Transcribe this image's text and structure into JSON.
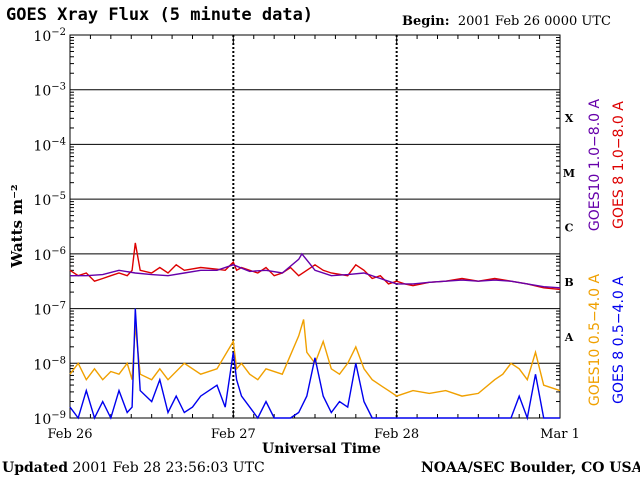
{
  "header": {
    "title": "GOES Xray Flux (5 minute data)",
    "begin_label": "Begin:",
    "begin_value": "2001 Feb 26 0000 UTC"
  },
  "footer": {
    "updated_label": "Updated",
    "updated_value": "2001 Feb 28 23:56:03 UTC",
    "source": "NOAA/SEC Boulder, CO USA"
  },
  "colors": {
    "goes10_long": "#6600aa",
    "goes8_long": "#dd0000",
    "goes10_short": "#f0a000",
    "goes8_short": "#0000ee"
  },
  "chart_data": {
    "type": "line",
    "x_unit": "days since 2001 Feb 26 0000 UTC",
    "xlim": [
      0,
      3
    ],
    "ylim_log10": [
      -9,
      -2
    ],
    "y_scale": "log",
    "xlabel": "Universal Time",
    "ylabel": "Watts m⁻²",
    "x_ticks": [
      {
        "x": 0,
        "label": "Feb 26"
      },
      {
        "x": 1,
        "label": "Feb 27"
      },
      {
        "x": 2,
        "label": "Feb 28"
      },
      {
        "x": 3,
        "label": "Mar 1"
      }
    ],
    "y_ticks": [
      {
        "exp": -2,
        "label": "10",
        "sup": "−2"
      },
      {
        "exp": -3,
        "label": "10",
        "sup": "−3"
      },
      {
        "exp": -4,
        "label": "10",
        "sup": "−4"
      },
      {
        "exp": -5,
        "label": "10",
        "sup": "−5"
      },
      {
        "exp": -6,
        "label": "10",
        "sup": "−6"
      },
      {
        "exp": -7,
        "label": "10",
        "sup": "−7"
      },
      {
        "exp": -8,
        "label": "10",
        "sup": "−8"
      },
      {
        "exp": -9,
        "label": "10",
        "sup": "−9"
      }
    ],
    "flare_classes": [
      {
        "label": "X",
        "log_mid": -3.5
      },
      {
        "label": "M",
        "log_mid": -4.5
      },
      {
        "label": "C",
        "log_mid": -5.5
      },
      {
        "label": "B",
        "log_mid": -6.5
      },
      {
        "label": "A",
        "log_mid": -7.5
      }
    ],
    "legend_right": [
      {
        "name": "GOES 8 1.0−8.0 A",
        "color": "#dd0000"
      },
      {
        "name": "GOES10 1.0−8.0 A",
        "color": "#6600aa"
      }
    ],
    "legend_right_short": [
      {
        "name": "GOES 8 0.5−4.0 A",
        "color": "#0000ee"
      },
      {
        "name": "GOES10 0.5−4.0 A",
        "color": "#f0a000"
      }
    ],
    "series": [
      {
        "name": "GOES10 1.0−8.0 A",
        "color": "#6600aa",
        "x": [
          0.0,
          0.1,
          0.2,
          0.3,
          0.4,
          0.5,
          0.6,
          0.7,
          0.8,
          0.9,
          1.0,
          1.1,
          1.2,
          1.3,
          1.4,
          1.42,
          1.46,
          1.5,
          1.6,
          1.7,
          1.8,
          1.9,
          2.0,
          2.1,
          2.2,
          2.3,
          2.4,
          2.5,
          2.6,
          2.7,
          2.8,
          2.9,
          3.0
        ],
        "log_y": [
          -6.4,
          -6.4,
          -6.38,
          -6.3,
          -6.35,
          -6.38,
          -6.4,
          -6.35,
          -6.3,
          -6.3,
          -6.2,
          -6.32,
          -6.3,
          -6.35,
          -6.1,
          -6.0,
          -6.15,
          -6.3,
          -6.4,
          -6.38,
          -6.35,
          -6.45,
          -6.55,
          -6.55,
          -6.52,
          -6.5,
          -6.48,
          -6.5,
          -6.48,
          -6.5,
          -6.55,
          -6.6,
          -6.62
        ]
      },
      {
        "name": "GOES 8 1.0−8.0 A",
        "color": "#dd0000",
        "x": [
          0.0,
          0.05,
          0.1,
          0.15,
          0.2,
          0.25,
          0.3,
          0.35,
          0.38,
          0.4,
          0.43,
          0.5,
          0.55,
          0.6,
          0.65,
          0.7,
          0.8,
          0.9,
          0.95,
          1.0,
          1.02,
          1.05,
          1.1,
          1.15,
          1.2,
          1.25,
          1.3,
          1.35,
          1.4,
          1.45,
          1.5,
          1.55,
          1.6,
          1.7,
          1.75,
          1.8,
          1.85,
          1.9,
          1.95,
          2.0,
          2.05,
          2.1,
          2.2,
          2.3,
          2.4,
          2.5,
          2.6,
          2.7,
          2.8,
          2.9,
          3.0
        ],
        "log_y": [
          -6.3,
          -6.4,
          -6.35,
          -6.5,
          -6.45,
          -6.4,
          -6.35,
          -6.4,
          -6.3,
          -5.8,
          -6.3,
          -6.35,
          -6.25,
          -6.35,
          -6.2,
          -6.3,
          -6.25,
          -6.28,
          -6.3,
          -6.15,
          -6.3,
          -6.25,
          -6.3,
          -6.35,
          -6.25,
          -6.4,
          -6.35,
          -6.25,
          -6.4,
          -6.3,
          -6.2,
          -6.3,
          -6.35,
          -6.4,
          -6.2,
          -6.3,
          -6.45,
          -6.4,
          -6.55,
          -6.5,
          -6.55,
          -6.58,
          -6.52,
          -6.5,
          -6.45,
          -6.5,
          -6.45,
          -6.5,
          -6.55,
          -6.62,
          -6.65
        ]
      },
      {
        "name": "GOES10 0.5−4.0 A",
        "color": "#f0a000",
        "x": [
          0.0,
          0.05,
          0.1,
          0.15,
          0.2,
          0.25,
          0.3,
          0.35,
          0.38,
          0.4,
          0.43,
          0.5,
          0.55,
          0.6,
          0.7,
          0.8,
          0.9,
          1.0,
          1.02,
          1.05,
          1.1,
          1.15,
          1.2,
          1.3,
          1.4,
          1.43,
          1.45,
          1.5,
          1.55,
          1.6,
          1.65,
          1.7,
          1.75,
          1.8,
          1.85,
          1.9,
          1.95,
          2.0,
          2.1,
          2.2,
          2.3,
          2.4,
          2.5,
          2.6,
          2.65,
          2.7,
          2.75,
          2.8,
          2.85,
          2.9,
          3.0
        ],
        "log_y": [
          -8.2,
          -8.0,
          -8.3,
          -8.1,
          -8.3,
          -8.15,
          -8.2,
          -8.0,
          -8.3,
          -7.3,
          -8.2,
          -8.3,
          -8.1,
          -8.3,
          -8.0,
          -8.2,
          -8.1,
          -7.6,
          -8.1,
          -8.0,
          -8.2,
          -8.3,
          -8.1,
          -8.2,
          -7.5,
          -7.2,
          -7.8,
          -8.0,
          -7.6,
          -8.1,
          -8.2,
          -8.0,
          -7.7,
          -8.1,
          -8.3,
          -8.4,
          -8.5,
          -8.6,
          -8.5,
          -8.55,
          -8.5,
          -8.6,
          -8.55,
          -8.3,
          -8.2,
          -8.0,
          -8.1,
          -8.3,
          -7.8,
          -8.4,
          -8.5
        ]
      },
      {
        "name": "GOES 8 0.5−4.0 A",
        "color": "#0000ee",
        "x": [
          0.0,
          0.05,
          0.1,
          0.15,
          0.2,
          0.25,
          0.3,
          0.35,
          0.38,
          0.4,
          0.43,
          0.5,
          0.55,
          0.6,
          0.65,
          0.7,
          0.75,
          0.8,
          0.9,
          0.95,
          1.0,
          1.02,
          1.05,
          1.1,
          1.15,
          1.2,
          1.25,
          1.3,
          1.35,
          1.4,
          1.45,
          1.5,
          1.55,
          1.6,
          1.65,
          1.7,
          1.75,
          1.8,
          1.85,
          1.9,
          1.95,
          2.0,
          2.1,
          2.2,
          2.3,
          2.4,
          2.5,
          2.6,
          2.7,
          2.75,
          2.8,
          2.85,
          2.9,
          3.0
        ],
        "log_y": [
          -8.8,
          -9.0,
          -8.5,
          -9.0,
          -8.7,
          -9.0,
          -8.5,
          -8.9,
          -8.8,
          -7.0,
          -8.5,
          -8.7,
          -8.3,
          -8.9,
          -8.6,
          -8.9,
          -8.8,
          -8.6,
          -8.4,
          -8.8,
          -7.8,
          -8.3,
          -8.6,
          -8.8,
          -9.0,
          -8.7,
          -9.0,
          -9.0,
          -9.0,
          -8.9,
          -8.6,
          -7.9,
          -8.6,
          -8.9,
          -8.7,
          -8.8,
          -8.0,
          -8.7,
          -9.0,
          -9.0,
          -9.0,
          -9.0,
          -9.0,
          -9.0,
          -9.0,
          -9.0,
          -9.0,
          -9.0,
          -9.0,
          -8.6,
          -9.0,
          -8.2,
          -9.0,
          -9.0
        ]
      }
    ]
  }
}
